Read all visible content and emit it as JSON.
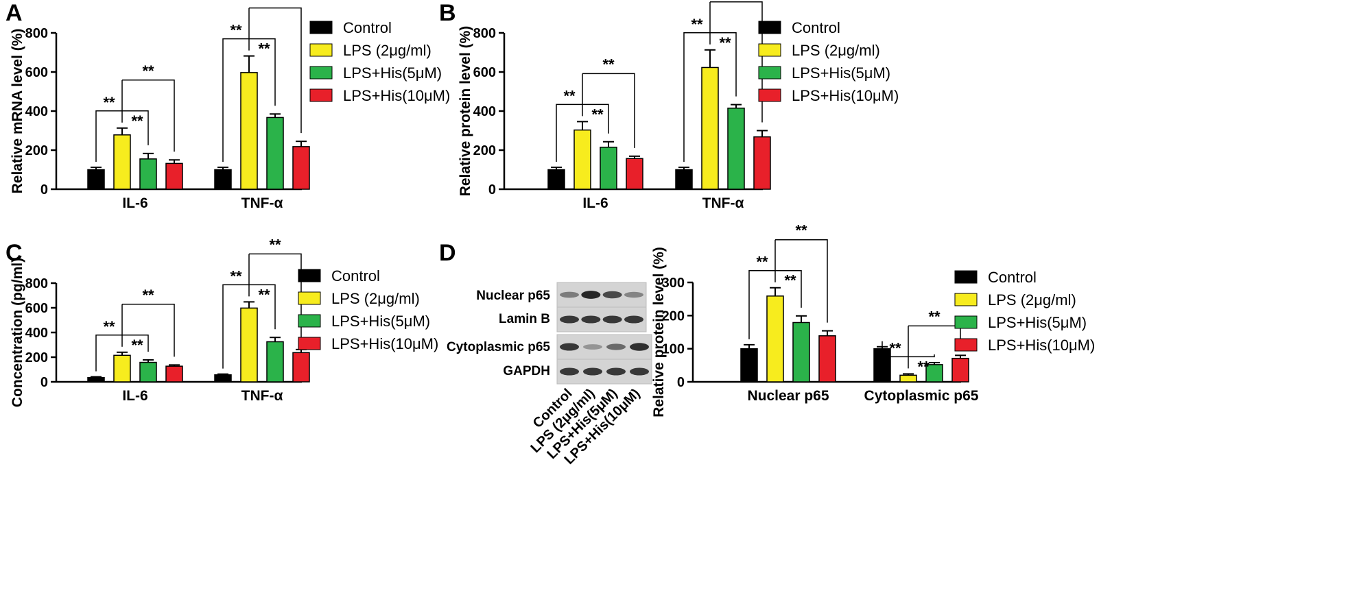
{
  "legend": [
    {
      "label": "Control",
      "color": "#000000"
    },
    {
      "label": "LPS (2μg/ml)",
      "color": "#f7ec1e"
    },
    {
      "label": "LPS+His(5μM)",
      "color": "#2bb34a"
    },
    {
      "label": "LPS+His(10μM)",
      "color": "#e8202a"
    }
  ],
  "chart_data": [
    {
      "panel": "A",
      "type": "bar",
      "ylabel": "Relative mRNA level (%)",
      "ylim": [
        0,
        800
      ],
      "yticks": [
        0,
        200,
        400,
        600,
        800
      ],
      "categories": [
        "IL-6",
        "TNF-α"
      ],
      "series": [
        {
          "name": "Control",
          "values": [
            100,
            100
          ],
          "errors": [
            12,
            12
          ]
        },
        {
          "name": "LPS (2μg/ml)",
          "values": [
            278,
            597
          ],
          "errors": [
            35,
            85
          ]
        },
        {
          "name": "LPS+His(5μM)",
          "values": [
            155,
            367
          ],
          "errors": [
            28,
            18
          ]
        },
        {
          "name": "LPS+His(10μM)",
          "values": [
            132,
            218
          ],
          "errors": [
            18,
            27
          ]
        }
      ],
      "significance": "**"
    },
    {
      "panel": "B",
      "type": "bar",
      "ylabel": "Relative protein level (%)",
      "ylim": [
        0,
        800
      ],
      "yticks": [
        0,
        200,
        400,
        600,
        800
      ],
      "categories": [
        "IL-6",
        "TNF-α"
      ],
      "series": [
        {
          "name": "Control",
          "values": [
            100,
            100
          ],
          "errors": [
            12,
            12
          ]
        },
        {
          "name": "LPS (2μg/ml)",
          "values": [
            303,
            623
          ],
          "errors": [
            43,
            90
          ]
        },
        {
          "name": "LPS+His(5μM)",
          "values": [
            215,
            415
          ],
          "errors": [
            28,
            18
          ]
        },
        {
          "name": "LPS+His(10μM)",
          "values": [
            157,
            268
          ],
          "errors": [
            12,
            32
          ]
        }
      ],
      "significance": "**"
    },
    {
      "panel": "C",
      "type": "bar",
      "ylabel": "Concentration (pg/ml)",
      "ylim": [
        0,
        800
      ],
      "yticks": [
        0,
        200,
        400,
        600,
        800
      ],
      "categories": [
        "IL-6",
        "TNF-α"
      ],
      "series": [
        {
          "name": "Control",
          "values": [
            35,
            57
          ],
          "errors": [
            6,
            6
          ]
        },
        {
          "name": "LPS (2μg/ml)",
          "values": [
            215,
            598
          ],
          "errors": [
            25,
            50
          ]
        },
        {
          "name": "LPS+His(5μM)",
          "values": [
            158,
            325
          ],
          "errors": [
            20,
            35
          ]
        },
        {
          "name": "LPS+His(10μM)",
          "values": [
            127,
            237
          ],
          "errors": [
            10,
            25
          ]
        }
      ],
      "significance": "**"
    },
    {
      "panel": "D",
      "type": "bar",
      "ylabel": "Relative protein level (%)",
      "ylim": [
        0,
        300
      ],
      "yticks": [
        0,
        100,
        200,
        300
      ],
      "categories": [
        "Nuclear p65",
        "Cytoplasmic p65"
      ],
      "series": [
        {
          "name": "Control",
          "values": [
            100,
            100
          ],
          "errors": [
            12,
            6
          ]
        },
        {
          "name": "LPS (2μg/ml)",
          "values": [
            259,
            20
          ],
          "errors": [
            25,
            4
          ]
        },
        {
          "name": "LPS+His(5μM)",
          "values": [
            179,
            52
          ],
          "errors": [
            20,
            6
          ]
        },
        {
          "name": "LPS+His(10μM)",
          "values": [
            139,
            71
          ],
          "errors": [
            15,
            9
          ]
        }
      ],
      "significance": "**"
    }
  ],
  "blot": {
    "rows": [
      {
        "label": "Nuclear p65",
        "intensities": [
          0.45,
          0.95,
          0.75,
          0.4
        ]
      },
      {
        "label": "Lamin B",
        "intensities": [
          0.85,
          0.85,
          0.85,
          0.85
        ]
      },
      {
        "label": "Cytoplasmic p65",
        "intensities": [
          0.85,
          0.3,
          0.55,
          0.9
        ]
      },
      {
        "label": "GAPDH",
        "intensities": [
          0.85,
          0.85,
          0.85,
          0.85
        ]
      }
    ],
    "lanes": [
      "Control",
      "LPS (2μg/ml)",
      "LPS+His(5μM)",
      "LPS+His(10μM)"
    ]
  }
}
